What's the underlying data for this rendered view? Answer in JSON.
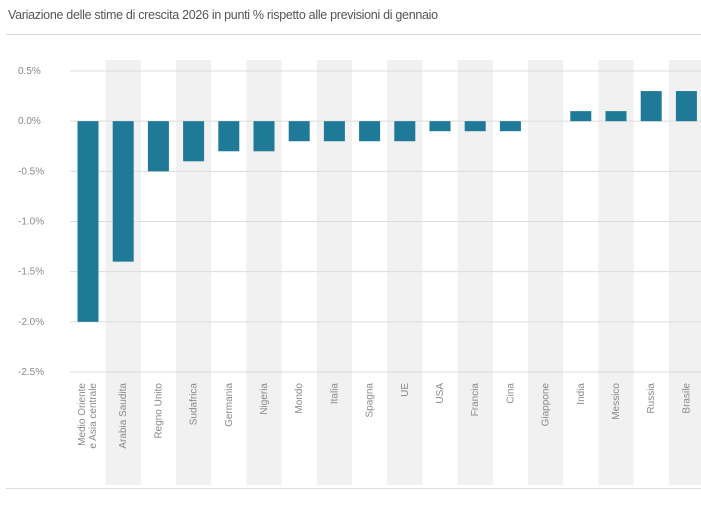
{
  "chart_data": {
    "type": "bar",
    "title": "Variazione delle stime di crescita 2026 in punti % rispetto alle previsioni di gennaio",
    "xlabel": "",
    "ylabel": "",
    "categories": [
      "Medio Oriente e Asia centrale",
      "Arabia Saudita",
      "Regno Unito",
      "Sudafrica",
      "Germania",
      "Nigeria",
      "Mondo",
      "Italia",
      "Spagna",
      "UE",
      "USA",
      "Francia",
      "Cina",
      "Giappone",
      "India",
      "Messico",
      "Russia",
      "Brasile"
    ],
    "values": [
      -2.0,
      -1.4,
      -0.5,
      -0.4,
      -0.3,
      -0.3,
      -0.2,
      -0.2,
      -0.2,
      -0.2,
      -0.1,
      -0.1,
      -0.1,
      0.0,
      0.1,
      0.1,
      0.3,
      0.3
    ],
    "ylim": [
      -2.5,
      0.5
    ],
    "yticks": [
      0.5,
      0.0,
      -0.5,
      -1.0,
      -1.5,
      -2.0,
      -2.5
    ],
    "ytick_labels": [
      "0.5%",
      "0.0%",
      "-0.5%",
      "-1.0%",
      "-1.5%",
      "-2.0%",
      "-2.5%"
    ],
    "bar_color": "#1f7a97",
    "band_color": "#f1f1f1",
    "grid": true
  }
}
